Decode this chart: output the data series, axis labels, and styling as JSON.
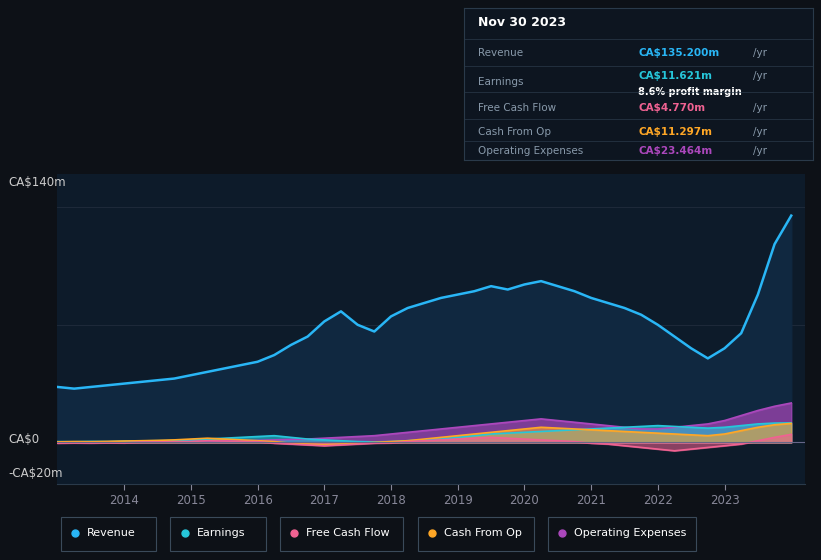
{
  "bg_color": "#0d1117",
  "plot_bg_color": "#0d1b2a",
  "title": "Nov 30 2023",
  "ylabel_top": "CA$140m",
  "ylabel_zero": "CA$0",
  "ylabel_neg": "-CA$20m",
  "ylim": [
    -25,
    160
  ],
  "years": [
    2013.0,
    2013.25,
    2013.5,
    2013.75,
    2014.0,
    2014.25,
    2014.5,
    2014.75,
    2015.0,
    2015.25,
    2015.5,
    2015.75,
    2016.0,
    2016.25,
    2016.5,
    2016.75,
    2017.0,
    2017.25,
    2017.5,
    2017.75,
    2018.0,
    2018.25,
    2018.5,
    2018.75,
    2019.0,
    2019.25,
    2019.5,
    2019.75,
    2020.0,
    2020.25,
    2020.5,
    2020.75,
    2021.0,
    2021.25,
    2021.5,
    2021.75,
    2022.0,
    2022.25,
    2022.5,
    2022.75,
    2023.0,
    2023.25,
    2023.5,
    2023.75,
    2024.0
  ],
  "revenue": [
    33,
    32,
    33,
    34,
    35,
    36,
    37,
    38,
    40,
    42,
    44,
    46,
    48,
    52,
    58,
    63,
    72,
    78,
    70,
    66,
    75,
    80,
    83,
    86,
    88,
    90,
    93,
    91,
    94,
    96,
    93,
    90,
    86,
    83,
    80,
    76,
    70,
    63,
    56,
    50,
    56,
    65,
    88,
    118,
    135
  ],
  "earnings": [
    0.5,
    0.4,
    0.6,
    0.5,
    0.8,
    0.9,
    1.0,
    1.1,
    1.5,
    2.0,
    2.5,
    3.0,
    3.5,
    4.0,
    3.0,
    2.0,
    1.5,
    1.0,
    0.5,
    0.3,
    0.5,
    1.0,
    1.5,
    2.0,
    3.0,
    4.0,
    5.0,
    5.5,
    6.0,
    6.5,
    7.0,
    7.5,
    8.0,
    8.5,
    9.0,
    9.5,
    10.0,
    9.5,
    9.0,
    8.5,
    9.0,
    10.0,
    11.0,
    11.5,
    11.621
  ],
  "free_cash_flow": [
    -0.5,
    -0.3,
    -0.4,
    -0.2,
    -0.3,
    0.2,
    0.3,
    0.4,
    0.5,
    1.0,
    0.8,
    0.6,
    0.5,
    -0.5,
    -1.0,
    -1.5,
    -2.0,
    -1.5,
    -1.0,
    -0.5,
    -0.3,
    0.5,
    1.0,
    1.5,
    2.0,
    2.5,
    3.0,
    2.5,
    2.0,
    1.5,
    1.0,
    0.5,
    -0.5,
    -1.0,
    -2.0,
    -3.0,
    -4.0,
    -5.0,
    -4.0,
    -3.0,
    -2.0,
    -1.0,
    1.0,
    3.0,
    4.77
  ],
  "cash_from_op": [
    0.3,
    0.5,
    0.4,
    0.6,
    0.8,
    1.0,
    1.2,
    1.5,
    2.0,
    2.5,
    2.0,
    1.5,
    1.0,
    0.5,
    -0.5,
    -1.0,
    -1.5,
    -1.0,
    -0.5,
    0.0,
    0.5,
    1.0,
    2.0,
    3.0,
    4.0,
    5.0,
    6.0,
    7.0,
    8.0,
    9.0,
    8.5,
    8.0,
    7.5,
    7.0,
    6.5,
    6.0,
    5.5,
    5.0,
    4.5,
    4.0,
    5.0,
    7.0,
    9.0,
    10.5,
    11.297
  ],
  "op_expenses": [
    0.2,
    0.3,
    0.2,
    0.3,
    0.4,
    0.5,
    0.5,
    0.6,
    0.7,
    0.8,
    0.9,
    1.0,
    1.2,
    1.5,
    1.8,
    2.0,
    2.5,
    3.0,
    3.5,
    4.0,
    5.0,
    6.0,
    7.0,
    8.0,
    9.0,
    10.0,
    11.0,
    12.0,
    13.0,
    14.0,
    13.0,
    12.0,
    11.0,
    10.0,
    9.0,
    8.0,
    8.0,
    9.0,
    10.0,
    11.0,
    13.0,
    16.0,
    19.0,
    21.5,
    23.464
  ],
  "revenue_color": "#29b6f6",
  "earnings_color": "#26c6da",
  "fcf_color": "#f06292",
  "cfo_color": "#ffa726",
  "opex_color": "#ab47bc",
  "revenue_fill": "#102840",
  "info_box_bg": "#0d1520",
  "info_box_border": "#2a3a4a",
  "legend_entries": [
    "Revenue",
    "Earnings",
    "Free Cash Flow",
    "Cash From Op",
    "Operating Expenses"
  ],
  "legend_colors": [
    "#29b6f6",
    "#26c6da",
    "#f06292",
    "#ffa726",
    "#ab47bc"
  ],
  "xticks": [
    2014,
    2015,
    2016,
    2017,
    2018,
    2019,
    2020,
    2021,
    2022,
    2023
  ],
  "xlim": [
    2013.0,
    2024.2
  ]
}
